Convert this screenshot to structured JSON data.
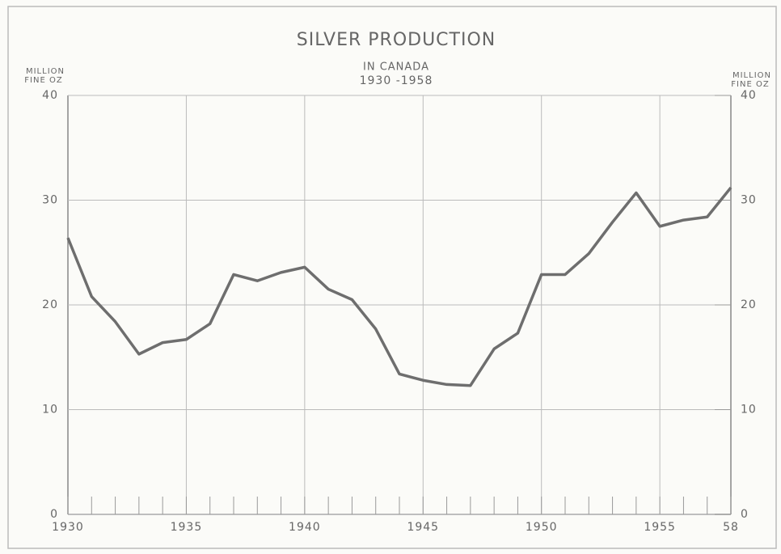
{
  "chart_data": {
    "type": "line",
    "title": "SILVER PRODUCTION",
    "subtitle": [
      "IN CANADA",
      "1930 -1958"
    ],
    "y_label": [
      "MILLION",
      "FINE OZ"
    ],
    "y2_label": [
      "MILLION",
      "FINE OZ"
    ],
    "x": [
      1930,
      1931,
      1932,
      1933,
      1934,
      1935,
      1936,
      1937,
      1938,
      1939,
      1940,
      1941,
      1942,
      1943,
      1944,
      1945,
      1946,
      1947,
      1948,
      1949,
      1950,
      1951,
      1952,
      1953,
      1954,
      1955,
      1956,
      1957,
      1958
    ],
    "series": [
      {
        "color": "#6e6e6e",
        "values": [
          26.4,
          20.8,
          18.4,
          15.3,
          16.4,
          16.7,
          18.2,
          22.9,
          22.3,
          23.1,
          23.6,
          21.5,
          20.5,
          17.7,
          13.4,
          12.8,
          12.4,
          12.3,
          15.8,
          17.3,
          22.9,
          22.9,
          24.9,
          27.9,
          30.7,
          27.5,
          28.1,
          28.4,
          31.2
        ]
      }
    ],
    "xlim": [
      1930,
      1958
    ],
    "xticks": [
      1930,
      1935,
      1940,
      1945,
      1950,
      1955,
      {
        "value": 1958,
        "label": "58"
      }
    ],
    "ylim": [
      0,
      40
    ],
    "yticks": [
      0,
      10,
      20,
      30,
      40
    ],
    "y2lim": [
      0,
      40
    ],
    "y2ticks": [
      0,
      10,
      20,
      30,
      40
    ],
    "grid": true
  }
}
